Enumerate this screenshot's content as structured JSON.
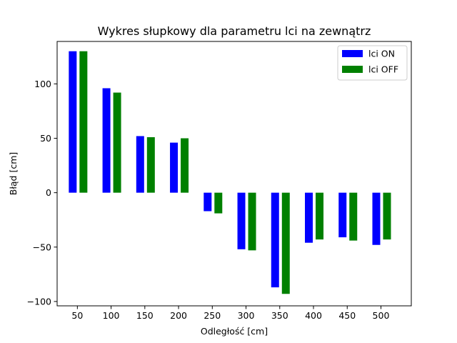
{
  "chart_data": {
    "type": "bar",
    "title": "Wykres słupkowy dla parametru lci na zewnątrz",
    "xlabel": "Odległość [cm]",
    "ylabel": "Błąd [cm]",
    "categories": [
      "50",
      "100",
      "150",
      "200",
      "250",
      "300",
      "350",
      "400",
      "450",
      "500"
    ],
    "x": [
      50,
      100,
      150,
      200,
      250,
      300,
      350,
      400,
      450,
      500
    ],
    "ylim": [
      -104,
      139
    ],
    "xlim": [
      20,
      545
    ],
    "yticks": [
      -100,
      -50,
      0,
      50,
      100
    ],
    "grid": false,
    "legend_position": "top-right",
    "series": [
      {
        "name": "lci ON",
        "color": "#0000ff",
        "values": [
          130,
          96,
          52,
          46,
          -17,
          -52,
          -87,
          -46,
          -41,
          -48
        ]
      },
      {
        "name": "lci OFF",
        "color": "#008000",
        "values": [
          130,
          92,
          51,
          50,
          -19,
          -53,
          -93,
          -43,
          -44,
          -43
        ]
      }
    ]
  }
}
